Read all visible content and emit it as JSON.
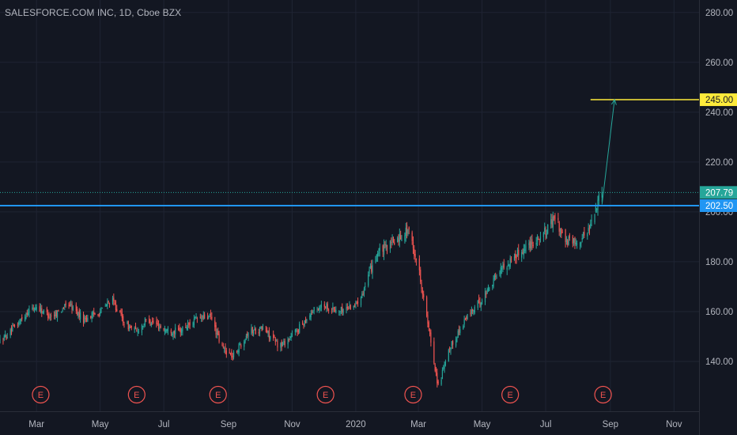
{
  "title": "SALESFORCE.COM INC, 1D, Cboe BZX",
  "colors": {
    "background": "#131722",
    "grid": "#1f2433",
    "up": "#26a69a",
    "down": "#ef5350",
    "support": "#2196f3",
    "target": "#ffeb3b",
    "axis_text": "#b2b5be"
  },
  "chart_data": {
    "type": "candlestick",
    "ylim": [
      120,
      285
    ],
    "y_ticks": [
      "140.00",
      "160.00",
      "180.00",
      "200.00",
      "220.00",
      "240.00",
      "260.00",
      "280.00"
    ],
    "y_tick_values": [
      140,
      160,
      180,
      200,
      220,
      240,
      260,
      280
    ],
    "x_tick_labels": [
      "Mar",
      "May",
      "Jul",
      "Sep",
      "Nov",
      "2020",
      "Mar",
      "May",
      "Jul",
      "Sep",
      "Nov"
    ],
    "x_tick_dates": [
      "2019-03-01",
      "2019-05-01",
      "2019-07-01",
      "2019-09-01",
      "2019-11-01",
      "2020-01-01",
      "2020-03-01",
      "2020-05-01",
      "2020-07-01",
      "2020-09-01",
      "2020-11-01"
    ],
    "x_range": [
      "2019-01-25",
      "2020-11-25"
    ],
    "price_path": [
      [
        "2019-01-25",
        148
      ],
      [
        "2019-02-05",
        152
      ],
      [
        "2019-02-20",
        160
      ],
      [
        "2019-03-01",
        162
      ],
      [
        "2019-03-15",
        158
      ],
      [
        "2019-04-01",
        163
      ],
      [
        "2019-04-15",
        157
      ],
      [
        "2019-05-01",
        160
      ],
      [
        "2019-05-12",
        165
      ],
      [
        "2019-05-25",
        155
      ],
      [
        "2019-06-05",
        152
      ],
      [
        "2019-06-15",
        157
      ],
      [
        "2019-07-01",
        153
      ],
      [
        "2019-07-15",
        152
      ],
      [
        "2019-08-01",
        157
      ],
      [
        "2019-08-15",
        158
      ],
      [
        "2019-08-25",
        146
      ],
      [
        "2019-09-05",
        142
      ],
      [
        "2019-09-20",
        152
      ],
      [
        "2019-10-05",
        153
      ],
      [
        "2019-10-20",
        146
      ],
      [
        "2019-11-05",
        152
      ],
      [
        "2019-11-20",
        160
      ],
      [
        "2019-12-01",
        163
      ],
      [
        "2019-12-15",
        160
      ],
      [
        "2020-01-01",
        163
      ],
      [
        "2020-01-10",
        170
      ],
      [
        "2020-01-20",
        183
      ],
      [
        "2020-02-01",
        186
      ],
      [
        "2020-02-20",
        193
      ],
      [
        "2020-03-01",
        178
      ],
      [
        "2020-03-12",
        150
      ],
      [
        "2020-03-20",
        130
      ],
      [
        "2020-04-01",
        146
      ],
      [
        "2020-04-15",
        157
      ],
      [
        "2020-05-01",
        165
      ],
      [
        "2020-05-15",
        175
      ],
      [
        "2020-06-01",
        182
      ],
      [
        "2020-06-15",
        187
      ],
      [
        "2020-07-01",
        192
      ],
      [
        "2020-07-10",
        198
      ],
      [
        "2020-07-20",
        188
      ],
      [
        "2020-08-01",
        188
      ],
      [
        "2020-08-10",
        192
      ],
      [
        "2020-08-20",
        204
      ],
      [
        "2020-08-24",
        207.79
      ]
    ],
    "levels": [
      {
        "label": "245.00",
        "value": 245,
        "style": "target"
      },
      {
        "label": "207.79",
        "value": 207.79,
        "style": "last-price"
      },
      {
        "label": "202.50",
        "value": 202.5,
        "style": "support"
      }
    ],
    "projection": {
      "from": [
        "2020-08-24",
        203
      ],
      "to": [
        "2020-09-05",
        245
      ]
    },
    "target_line": {
      "from": "2020-08-13",
      "to": "2020-11-25",
      "value": 245
    },
    "earnings": [
      {
        "label": "E",
        "date": "2019-03-05"
      },
      {
        "label": "E",
        "date": "2019-06-05"
      },
      {
        "label": "E",
        "date": "2019-08-22"
      },
      {
        "label": "E",
        "date": "2019-12-03"
      },
      {
        "label": "E",
        "date": "2020-02-25"
      },
      {
        "label": "E",
        "date": "2020-05-28"
      },
      {
        "label": "E",
        "date": "2020-08-25"
      }
    ]
  }
}
